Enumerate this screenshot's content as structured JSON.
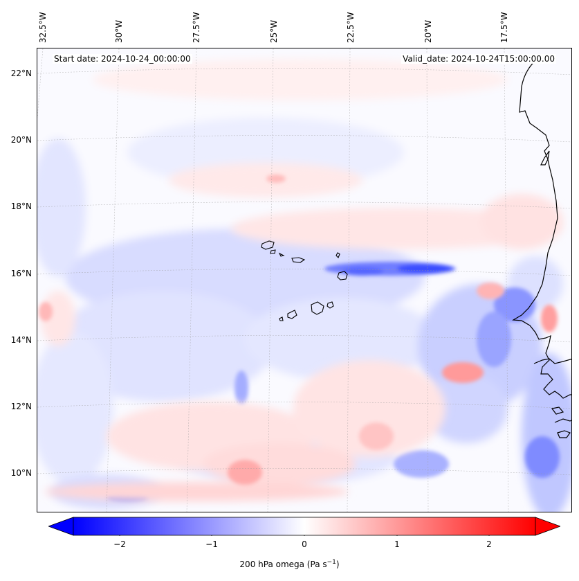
{
  "map": {
    "projection": "Lambert conformal",
    "region": "Cape Verde / West Africa coast",
    "lon_ticks": [
      "32.5°W",
      "30°W",
      "27.5°W",
      "25°W",
      "22.5°W",
      "20°W",
      "17.5°W"
    ],
    "lat_ticks": [
      "22°N",
      "20°N",
      "18°N",
      "16°N",
      "14°N",
      "12°N",
      "10°N"
    ],
    "gridlines": true,
    "start_date_text": "Start date: 2024-10-24_00:00:00",
    "valid_date_text": "Valid_date: 2024-10-24T15:00:00.00",
    "field": "200 hPa omega",
    "colormap": "bwr",
    "colors": {
      "negative": "#0000ff",
      "zero": "#ffffff",
      "positive": "#ff0000",
      "coast": "#000000"
    }
  },
  "colorbar": {
    "label_main": "200 hPa omega (Pa s",
    "label_exp": "−1",
    "label_close": ")",
    "range": [
      -2.5,
      2.5
    ],
    "extend": "both",
    "ticks": [
      {
        "value": -2,
        "label": "−2"
      },
      {
        "value": -1,
        "label": "−1"
      },
      {
        "value": 0,
        "label": "0"
      },
      {
        "value": 1,
        "label": "1"
      },
      {
        "value": 2,
        "label": "2"
      }
    ]
  }
}
